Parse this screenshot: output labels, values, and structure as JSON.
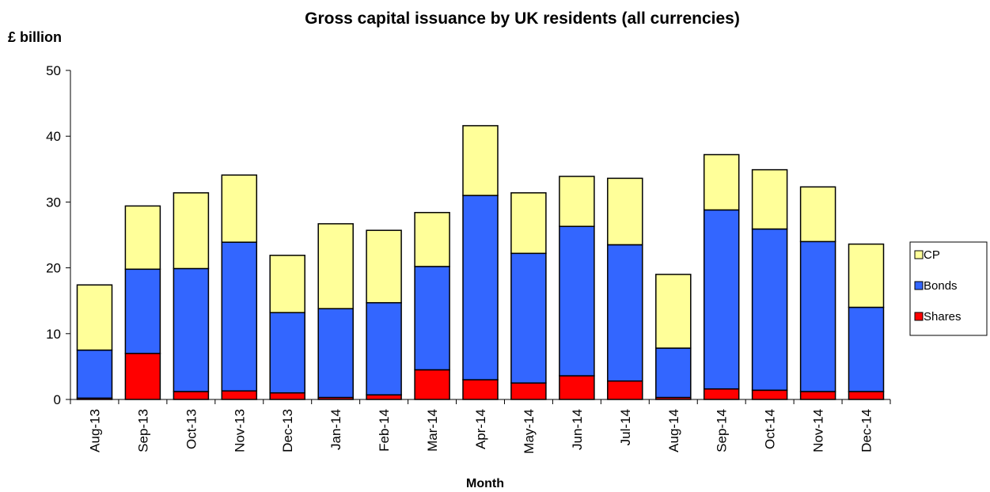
{
  "chart_data": {
    "type": "bar",
    "stacked": true,
    "title": "Gross capital issuance by UK residents (all currencies)",
    "ylabel": "£ billion",
    "xlabel": "Month",
    "ylim": [
      0,
      50
    ],
    "yticks": [
      0,
      10,
      20,
      30,
      40,
      50
    ],
    "grid": false,
    "legend_position": "right",
    "categories": [
      "Aug-13",
      "Sep-13",
      "Oct-13",
      "Nov-13",
      "Dec-13",
      "Jan-14",
      "Feb-14",
      "Mar-14",
      "Apr-14",
      "May-14",
      "Jun-14",
      "Jul-14",
      "Aug-14",
      "Sep-14",
      "Oct-14",
      "Nov-14",
      "Dec-14"
    ],
    "series": [
      {
        "name": "Shares",
        "color": "#ff0000",
        "values": [
          0.2,
          7.0,
          1.2,
          1.3,
          1.0,
          0.3,
          0.7,
          4.5,
          3.0,
          2.5,
          3.6,
          2.8,
          0.3,
          1.6,
          1.4,
          1.2,
          1.2
        ]
      },
      {
        "name": "Bonds",
        "color": "#3366ff",
        "values": [
          7.3,
          12.8,
          18.7,
          22.6,
          12.2,
          13.5,
          14.0,
          15.7,
          28.0,
          19.7,
          22.7,
          20.7,
          7.5,
          27.2,
          24.5,
          22.8,
          12.8
        ]
      },
      {
        "name": "CP",
        "color": "#ffff99",
        "values": [
          9.9,
          9.6,
          11.5,
          10.2,
          8.7,
          12.9,
          11.0,
          8.2,
          10.6,
          9.2,
          7.6,
          10.1,
          11.2,
          8.4,
          9.0,
          8.3,
          9.6
        ]
      }
    ],
    "legend_order": [
      "CP",
      "Bonds",
      "Shares"
    ]
  }
}
